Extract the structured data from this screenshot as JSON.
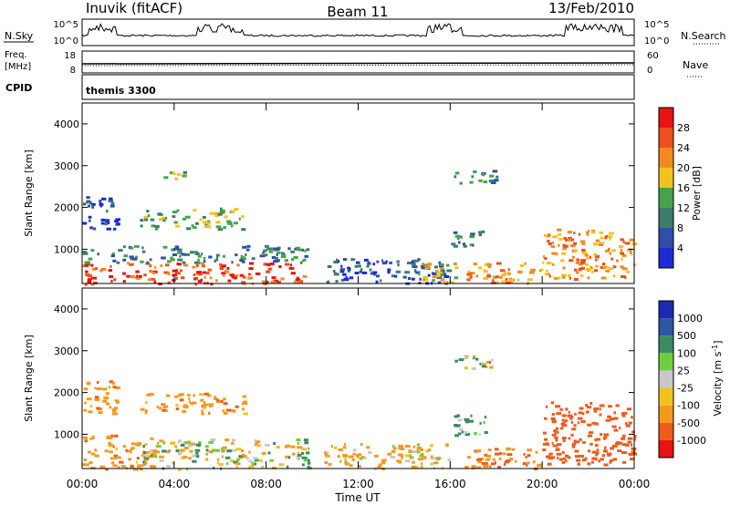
{
  "header": {
    "station": "Inuvik (fitACF)",
    "beam": "Beam 11",
    "date": "13/Feb/2010"
  },
  "nsky_panel": {
    "left_label": "N.Sky",
    "right_label": "N.Search",
    "yticks": [
      "10^5",
      "10^0"
    ]
  },
  "freq_panel": {
    "label_line1": "Freq.",
    "label_line2": "[MHz]",
    "right_label": "Nave",
    "left_ticks": [
      "18",
      "8"
    ],
    "right_ticks": [
      "60",
      "0"
    ]
  },
  "cpid_panel": {
    "label": "CPID",
    "program": "themis 3300"
  },
  "colors": {
    "power_scale": [
      "#1c2bd6",
      "#2f4fa8",
      "#3d7b6c",
      "#46a349",
      "#f2c31f",
      "#f18b21",
      "#ee4f1c",
      "#e81313"
    ],
    "velocity_scale": [
      "#1b2ab3",
      "#2d56a3",
      "#3b8b60",
      "#6fce3e",
      "#c8c8c8",
      "#f2c31f",
      "#f39a1e",
      "#ef5b1b",
      "#e81313"
    ]
  },
  "chart_data": [
    {
      "type": "heatmap",
      "title": "Power",
      "xlabel": "",
      "ylabel": "Slant Range [km]",
      "xlim": [
        "00:00",
        "24:00"
      ],
      "ylim": [
        180,
        4500
      ],
      "yticks": [
        1000,
        2000,
        3000,
        4000
      ],
      "colorbar": {
        "label": "Power [dB]",
        "range": [
          0,
          32
        ],
        "ticks": [
          "4",
          "8",
          "12",
          "16",
          "20",
          "24",
          "28"
        ]
      },
      "echo_regions": [
        {
          "t_start": 0.0,
          "t_end": 9.6,
          "range_start": 180,
          "range_end": 700,
          "level_db": 28
        },
        {
          "t_start": 0.0,
          "t_end": 9.8,
          "range_start": 700,
          "range_end": 1100,
          "level_db": 12
        },
        {
          "t_start": 0.0,
          "t_end": 1.5,
          "range_start": 1500,
          "range_end": 2300,
          "level_db": 8
        },
        {
          "t_start": 2.5,
          "t_end": 7.0,
          "range_start": 1500,
          "range_end": 2000,
          "level_db": 16
        },
        {
          "t_start": 3.5,
          "t_end": 4.5,
          "range_start": 2700,
          "range_end": 3000,
          "level_db": 16
        },
        {
          "t_start": 10.5,
          "t_end": 16.0,
          "range_start": 200,
          "range_end": 800,
          "level_db": 8
        },
        {
          "t_start": 14.5,
          "t_end": 16.2,
          "range_start": 200,
          "range_end": 700,
          "level_db": 20
        },
        {
          "t_start": 16.0,
          "t_end": 18.0,
          "range_start": 2600,
          "range_end": 2900,
          "level_db": 12
        },
        {
          "t_start": 16.0,
          "t_end": 17.5,
          "range_start": 1100,
          "range_end": 1500,
          "level_db": 12
        },
        {
          "t_start": 16.5,
          "t_end": 20.0,
          "range_start": 200,
          "range_end": 700,
          "level_db": 24
        },
        {
          "t_start": 20.0,
          "t_end": 24.0,
          "range_start": 300,
          "range_end": 1500,
          "level_db": 24
        }
      ]
    },
    {
      "type": "heatmap",
      "title": "Velocity",
      "xlabel": "Time UT",
      "ylabel": "Slant Range [km]",
      "xlim": [
        "00:00",
        "24:00"
      ],
      "xticks": [
        "00:00",
        "04:00",
        "08:00",
        "12:00",
        "16:00",
        "20:00",
        "00:00"
      ],
      "ylim": [
        180,
        4500
      ],
      "yticks": [
        1000,
        2000,
        3000,
        4000
      ],
      "colorbar": {
        "label": "Velocity [m s^-1]",
        "ticks": [
          "1000",
          "500",
          "100",
          "25",
          "-25",
          "-100",
          "-500",
          "-1000"
        ]
      },
      "echo_regions": [
        {
          "t_start": 0.0,
          "t_end": 3.0,
          "range_start": 180,
          "range_end": 1000,
          "velocity": -200
        },
        {
          "t_start": 2.5,
          "t_end": 9.8,
          "range_start": 180,
          "range_end": 900,
          "velocity": 0
        },
        {
          "t_start": 0.0,
          "t_end": 1.5,
          "range_start": 1500,
          "range_end": 2300,
          "velocity": -200
        },
        {
          "t_start": 2.5,
          "t_end": 7.0,
          "range_start": 1500,
          "range_end": 2000,
          "velocity": -200
        },
        {
          "t_start": 10.5,
          "t_end": 16.0,
          "range_start": 200,
          "range_end": 800,
          "velocity": -100
        },
        {
          "t_start": 16.0,
          "t_end": 17.5,
          "range_start": 1000,
          "range_end": 1500,
          "velocity": 150
        },
        {
          "t_start": 16.0,
          "t_end": 18.0,
          "range_start": 2600,
          "range_end": 2900,
          "velocity": 0
        },
        {
          "t_start": 16.5,
          "t_end": 20.0,
          "range_start": 200,
          "range_end": 700,
          "velocity": -300
        },
        {
          "t_start": 20.0,
          "t_end": 24.0,
          "range_start": 300,
          "range_end": 1800,
          "velocity": -500
        }
      ]
    }
  ]
}
